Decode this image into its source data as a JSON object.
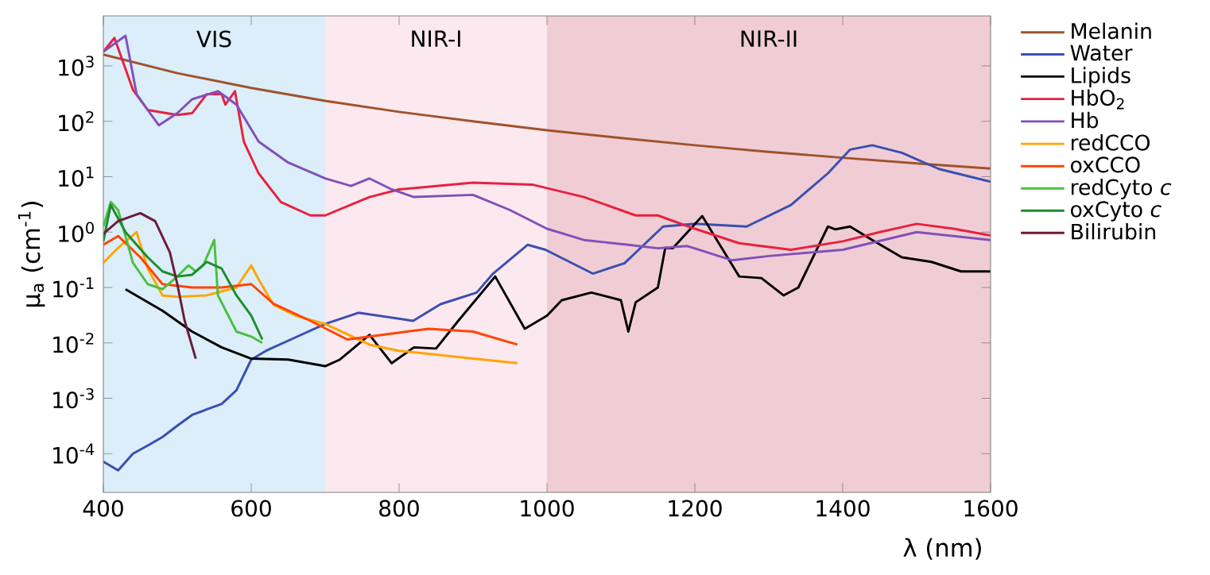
{
  "chart_data": {
    "type": "line",
    "xlabel": "λ (nm)",
    "ylabel": "μ$_{a}$ (cm$^{-1}$)",
    "log": "y",
    "legend": "right",
    "xlim": [
      400,
      1600
    ],
    "ylim": [
      2e-05,
      8000
    ],
    "xticks": [
      400,
      600,
      800,
      1000,
      1200,
      1400,
      1600
    ],
    "yticks": [
      {
        "value": 0.0001,
        "label": "10$^{-4}$"
      },
      {
        "value": 0.001,
        "label": "10$^{-3}$"
      },
      {
        "value": 0.01,
        "label": "10$^{-2}$"
      },
      {
        "value": 0.1,
        "label": "10$^{-1}$"
      },
      {
        "value": 1,
        "label": "10$^{0}$"
      },
      {
        "value": 10,
        "label": "10$^{1}$"
      },
      {
        "value": 100,
        "label": "10$^{2}$"
      },
      {
        "value": 1000,
        "label": "10$^{3}$"
      }
    ],
    "bands": [
      {
        "axis": "x",
        "from": 400,
        "to": 700,
        "label": "VIS",
        "color": "#dbeef9"
      },
      {
        "axis": "x",
        "from": 700,
        "to": 1000,
        "label": "NIR-I",
        "color": "#fce8ef"
      },
      {
        "axis": "x",
        "from": 1000,
        "to": 1600,
        "label": "NIR-II",
        "color": "#f0cdd5"
      }
    ],
    "series": [
      {
        "name": "Melanin",
        "color": "#a0522d",
        "x": [
          400,
          500,
          600,
          700,
          800,
          900,
          1000,
          1100,
          1200,
          1300,
          1400,
          1500,
          1600
        ],
        "values": [
          1600,
          740,
          400,
          234,
          148,
          100,
          69,
          50,
          37,
          28,
          22,
          17.4,
          14
        ]
      },
      {
        "name": "Water",
        "color": "#3a4fb0",
        "x": [
          400,
          420,
          440,
          460,
          480,
          500,
          520,
          540,
          560,
          580,
          600,
          620,
          660,
          700,
          745,
          819,
          856,
          905,
          927,
          974,
          998,
          1062,
          1105,
          1157,
          1200,
          1270,
          1330,
          1380,
          1410,
          1440,
          1480,
          1530,
          1600
        ],
        "values": [
          7.2e-05,
          5e-05,
          0.0001,
          0.00014,
          0.0002,
          0.00032,
          0.0005,
          0.00063,
          0.00079,
          0.0014,
          0.005,
          0.0072,
          0.0126,
          0.022,
          0.035,
          0.025,
          0.05,
          0.081,
          0.178,
          0.59,
          0.48,
          0.178,
          0.275,
          1.26,
          1.41,
          1.26,
          3.09,
          11.5,
          30.9,
          37,
          27,
          13.8,
          8.1
        ]
      },
      {
        "name": "Lipids",
        "color": "#000000",
        "x": [
          430,
          480,
          520,
          560,
          600,
          650,
          700,
          720,
          760,
          790,
          820,
          850,
          880,
          930,
          970,
          1000,
          1020,
          1060,
          1100,
          1110,
          1120,
          1150,
          1160,
          1170,
          1210,
          1240,
          1260,
          1290,
          1320,
          1340,
          1380,
          1390,
          1410,
          1440,
          1480,
          1520,
          1560,
          1600
        ],
        "values": [
          0.093,
          0.038,
          0.016,
          0.0083,
          0.0052,
          0.005,
          0.0038,
          0.005,
          0.014,
          0.0043,
          0.0083,
          0.0079,
          0.025,
          0.158,
          0.018,
          0.031,
          0.059,
          0.081,
          0.059,
          0.016,
          0.054,
          0.1,
          0.52,
          0.51,
          1.95,
          0.43,
          0.158,
          0.148,
          0.072,
          0.1,
          1.26,
          1.12,
          1.26,
          0.72,
          0.35,
          0.29,
          0.195,
          0.195
        ]
      },
      {
        "name": "HbO$_{2}$",
        "color": "#e8213f",
        "x": [
          400,
          415,
          440,
          460,
          500,
          520,
          540,
          560,
          565,
          578,
          590,
          610,
          640,
          680,
          700,
          760,
          800,
          900,
          980,
          1050,
          1120,
          1150,
          1200,
          1260,
          1330,
          1400,
          1450,
          1500,
          1550,
          1600
        ],
        "values": [
          1800,
          3200,
          370,
          160,
          130,
          140,
          310,
          310,
          200,
          350,
          43,
          11.5,
          3.5,
          2,
          2,
          4.3,
          5.9,
          7.8,
          7.2,
          4.3,
          2,
          2,
          1.15,
          0.63,
          0.48,
          0.68,
          1,
          1.41,
          1.15,
          0.87
        ]
      },
      {
        "name": "Hb",
        "color": "#8250b8",
        "x": [
          400,
          430,
          445,
          460,
          475,
          500,
          520,
          555,
          580,
          610,
          650,
          700,
          735,
          760,
          790,
          820,
          900,
          950,
          1000,
          1050,
          1110,
          1150,
          1190,
          1250,
          1300,
          1400,
          1500,
          1600
        ],
        "values": [
          1800,
          3500,
          310,
          160,
          85,
          140,
          250,
          350,
          200,
          43,
          18,
          9.3,
          6.8,
          9.3,
          5.9,
          4.3,
          4.7,
          2.5,
          1.15,
          0.72,
          0.59,
          0.51,
          0.56,
          0.31,
          0.37,
          0.48,
          1,
          0.72
        ]
      },
      {
        "name": "redCCO",
        "color": "#ffa500",
        "x": [
          400,
          420,
          445,
          460,
          480,
          500,
          540,
          580,
          600,
          610,
          630,
          660,
          700,
          760,
          800,
          900,
          960
        ],
        "values": [
          0.28,
          0.52,
          1,
          0.22,
          0.072,
          0.068,
          0.072,
          0.1,
          0.25,
          0.14,
          0.049,
          0.031,
          0.022,
          0.0093,
          0.0072,
          0.0052,
          0.0043
        ]
      },
      {
        "name": "oxCCO",
        "color": "#ff4500",
        "x": [
          400,
          420,
          450,
          480,
          520,
          560,
          600,
          630,
          680,
          730,
          760,
          840,
          900,
          960
        ],
        "values": [
          0.59,
          0.85,
          0.35,
          0.115,
          0.1,
          0.1,
          0.115,
          0.051,
          0.025,
          0.0115,
          0.013,
          0.018,
          0.016,
          0.0093
        ]
      },
      {
        "name": "redCyto *c*",
        "color": "#4cbf3f",
        "x": [
          400,
          410,
          420,
          440,
          460,
          480,
          500,
          515,
          525,
          535,
          550,
          555,
          580,
          600,
          615
        ],
        "values": [
          1.26,
          3.5,
          2.5,
          0.28,
          0.115,
          0.093,
          0.158,
          0.25,
          0.195,
          0.25,
          0.72,
          0.072,
          0.016,
          0.013,
          0.01
        ]
      },
      {
        "name": "oxCyto *c*",
        "color": "#1e8c2e",
        "x": [
          400,
          410,
          430,
          460,
          480,
          500,
          520,
          540,
          560,
          580,
          600,
          615
        ],
        "values": [
          0.68,
          3.1,
          1,
          0.35,
          0.195,
          0.158,
          0.17,
          0.29,
          0.22,
          0.072,
          0.031,
          0.0115
        ]
      },
      {
        "name": "Bilirubin",
        "color": "#6b1a3a",
        "x": [
          400,
          420,
          450,
          470,
          490,
          500,
          510,
          525
        ],
        "values": [
          0.93,
          1.58,
          2.2,
          1.58,
          0.43,
          0.115,
          0.025,
          0.0052
        ]
      }
    ]
  }
}
